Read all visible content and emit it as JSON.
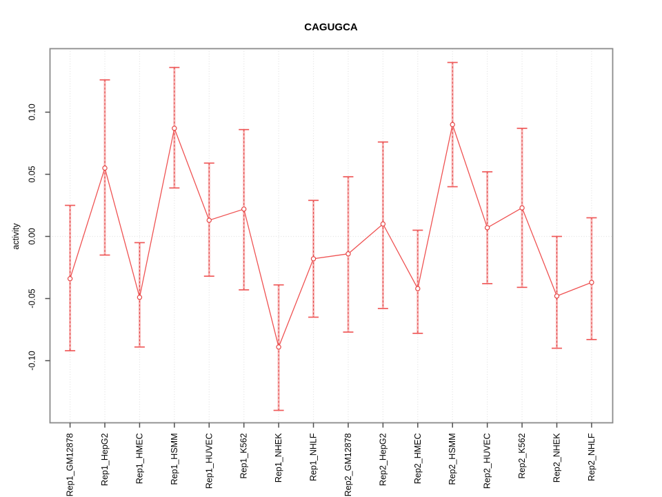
{
  "chart_data": {
    "type": "line",
    "title": "CAGUGCA",
    "ylabel": "activity",
    "xlabel": "",
    "categories": [
      "Rep1_GM12878",
      "Rep1_HepG2",
      "Rep1_HMEC",
      "Rep1_HSMM",
      "Rep1_HUVEC",
      "Rep1_K562",
      "Rep1_NHEK",
      "Rep1_NHLF",
      "Rep2_GM12878",
      "Rep2_HepG2",
      "Rep2_HMEC",
      "Rep2_HSMM",
      "Rep2_HUVEC",
      "Rep2_K562",
      "Rep2_NHEK",
      "Rep2_NHLF"
    ],
    "series": [
      {
        "name": "activity",
        "values": [
          -0.034,
          0.055,
          -0.049,
          0.087,
          0.013,
          0.022,
          -0.089,
          -0.018,
          -0.014,
          0.01,
          -0.042,
          0.09,
          0.007,
          0.023,
          -0.048,
          -0.037
        ],
        "error_high": [
          0.025,
          0.126,
          -0.005,
          0.136,
          0.059,
          0.086,
          -0.039,
          0.029,
          0.048,
          0.076,
          0.005,
          0.14,
          0.052,
          0.087,
          0.0,
          0.015
        ],
        "error_low": [
          -0.092,
          -0.015,
          -0.089,
          0.039,
          -0.032,
          -0.043,
          -0.14,
          -0.065,
          -0.077,
          -0.058,
          -0.078,
          0.04,
          -0.038,
          -0.041,
          -0.09,
          -0.083
        ]
      }
    ],
    "ylim": [
      -0.15,
      0.15
    ],
    "yticks": [
      -0.1,
      -0.05,
      0.0,
      0.05,
      0.1
    ],
    "ytick_labels": [
      "-0.10",
      "-0.05",
      "0.00",
      "0.05",
      "0.10"
    ],
    "grid": {
      "vertical_per_category": true,
      "horizontal_zero_line": true,
      "style": "dotted"
    },
    "legend": "none",
    "marker": "open-circle",
    "colors": {
      "line": "#ef5252",
      "marker": "#e64545",
      "error_band": "#f7a9a9",
      "error_dash": "#e04848",
      "error_cap": "#ef5858",
      "grid": "#e1e1e1",
      "box": "#8a8a8a",
      "tick": "#4d4d4d",
      "text": "#000000"
    }
  }
}
